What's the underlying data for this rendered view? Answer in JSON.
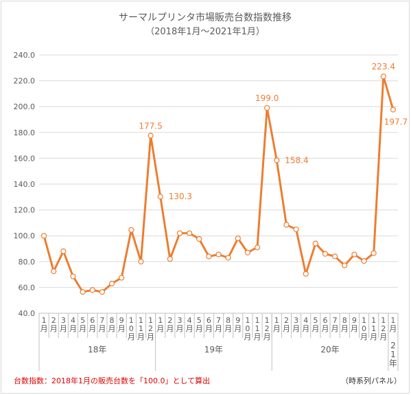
{
  "chart_data": {
    "type": "line",
    "title": "サーマルプリンタ市場販売台数指数推移",
    "subtitle": "（2018年1月〜2021年1月）",
    "categories": [
      "1月",
      "2月",
      "3月",
      "4月",
      "5月",
      "6月",
      "7月",
      "8月",
      "9月",
      "10月",
      "11月",
      "12月",
      "1月",
      "2月",
      "3月",
      "4月",
      "5月",
      "6月",
      "7月",
      "8月",
      "9月",
      "10月",
      "11月",
      "12月",
      "1月",
      "2月",
      "3月",
      "4月",
      "5月",
      "6月",
      "7月",
      "8月",
      "9月",
      "10月",
      "11月",
      "12月",
      "1月"
    ],
    "year_groups": [
      {
        "label": "18年",
        "start": 0,
        "count": 12
      },
      {
        "label": "19年",
        "start": 12,
        "count": 12
      },
      {
        "label": "20年",
        "start": 24,
        "count": 12
      },
      {
        "label": "21年",
        "start": 36,
        "count": 1
      }
    ],
    "series": [
      {
        "values": [
          100.0,
          72.5,
          88.0,
          68.5,
          56.5,
          58.0,
          56.5,
          63.0,
          67.5,
          104.5,
          80.0,
          177.5,
          130.3,
          82.0,
          102.0,
          102.0,
          97.5,
          84.0,
          85.5,
          83.0,
          98.0,
          87.0,
          91.0,
          199.0,
          158.4,
          108.5,
          105.0,
          70.5,
          94.0,
          86.0,
          84.0,
          77.0,
          85.5,
          80.5,
          86.5,
          223.4,
          197.7
        ],
        "color": "#ed7d31"
      }
    ],
    "data_labels": [
      {
        "index": 11,
        "text": "177.5"
      },
      {
        "index": 12,
        "text": "130.3"
      },
      {
        "index": 23,
        "text": "199.0"
      },
      {
        "index": 24,
        "text": "158.4"
      },
      {
        "index": 35,
        "text": "223.4"
      },
      {
        "index": 36,
        "text": "197.7"
      }
    ],
    "ylim": [
      40,
      240
    ],
    "yticks": [
      "40.0",
      "60.0",
      "80.0",
      "100.0",
      "120.0",
      "140.0",
      "160.0",
      "180.0",
      "200.0",
      "220.0",
      "240.0"
    ],
    "grid": true,
    "legend": "none"
  },
  "footer": {
    "note": "台数指数：2018年1月の販売台数を「100.0」として算出",
    "source": "（時系列パネル）"
  }
}
